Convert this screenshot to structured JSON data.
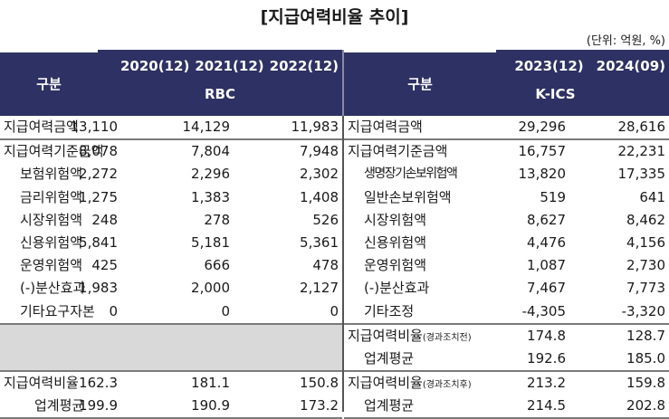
{
  "title": "[지급여력비율 추이]",
  "unit": "(단위: 억원, %)",
  "colors": {
    "header_bg": "#2e3163",
    "header_text": "#ffffff",
    "gray_fill": "#d9d9d9"
  },
  "rbc": {
    "header": {
      "label": "구분",
      "years": [
        "2020(12)",
        "2021(12)",
        "2022(12)"
      ],
      "regime": "RBC"
    },
    "rows": [
      {
        "label": "지급여력금액",
        "values": [
          "13,110",
          "14,129",
          "11,983"
        ]
      },
      {
        "label": "지급여력기준금액",
        "values": [
          "8,078",
          "7,804",
          "7,948"
        ]
      },
      {
        "label": "보험위험액",
        "values": [
          "2,272",
          "2,296",
          "2,302"
        ]
      },
      {
        "label": "금리위험액",
        "values": [
          "1,275",
          "1,383",
          "1,408"
        ]
      },
      {
        "label": "시장위험액",
        "values": [
          "248",
          "278",
          "526"
        ]
      },
      {
        "label": "신용위험액",
        "values": [
          "5,841",
          "5,181",
          "5,361"
        ]
      },
      {
        "label": "운영위험액",
        "values": [
          "425",
          "666",
          "478"
        ]
      },
      {
        "label": "(-)분산효과",
        "values": [
          "1,983",
          "2,000",
          "2,127"
        ]
      },
      {
        "label": "기타요구자본",
        "values": [
          "0",
          "0",
          "0"
        ]
      }
    ],
    "ratio_rows": [
      {
        "label": "지급여력비율",
        "values": [
          "162.3",
          "181.1",
          "150.8"
        ]
      },
      {
        "label": "업계평균",
        "values": [
          "199.9",
          "190.9",
          "173.2"
        ]
      }
    ]
  },
  "kics": {
    "header": {
      "label": "구분",
      "years": [
        "2023(12)",
        "2024(09)"
      ],
      "regime": "K-ICS"
    },
    "rows": [
      {
        "label": "지급여력금액",
        "values": [
          "29,296",
          "28,616"
        ]
      },
      {
        "label": "지급여력기준금액",
        "values": [
          "16,757",
          "22,231"
        ]
      },
      {
        "label": "생명장기손보위험액",
        "values": [
          "13,820",
          "17,335"
        ]
      },
      {
        "label": "일반손보위험액",
        "values": [
          "519",
          "641"
        ]
      },
      {
        "label": "시장위험액",
        "values": [
          "8,627",
          "8,462"
        ]
      },
      {
        "label": "신용위험액",
        "values": [
          "4,476",
          "4,156"
        ]
      },
      {
        "label": "운영위험액",
        "values": [
          "1,087",
          "2,730"
        ]
      },
      {
        "label": "(-)분산효과",
        "values": [
          "7,467",
          "7,773"
        ]
      },
      {
        "label": "기타조정",
        "values": [
          "-4,305",
          "-3,320"
        ]
      }
    ],
    "ratio_before": {
      "label": "지급여력비율",
      "note": "(경과조치전)",
      "values": [
        "174.8",
        "128.7"
      ],
      "avg_label": "업계평균",
      "avg_values": [
        "192.6",
        "185.0"
      ]
    },
    "ratio_after": {
      "label": "지급여력비율",
      "note": "(경과조치후)",
      "values": [
        "213.2",
        "159.8"
      ],
      "avg_label": "업계평균",
      "avg_values": [
        "214.5",
        "202.8"
      ]
    }
  }
}
